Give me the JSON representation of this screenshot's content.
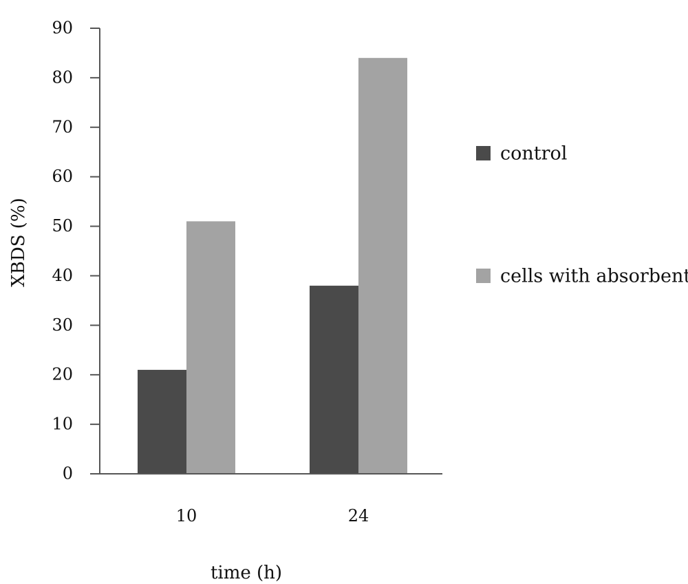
{
  "chart_data": {
    "type": "bar",
    "categories": [
      "10",
      "24"
    ],
    "series": [
      {
        "name": "control",
        "values": [
          21,
          38
        ],
        "color": "#4a4a4a"
      },
      {
        "name": "cells with absorbent",
        "values": [
          51,
          84
        ],
        "color": "#a3a3a3"
      }
    ],
    "title": "",
    "xlabel": "time (h)",
    "ylabel": "XBDS (%)",
    "ylim": [
      0,
      90
    ],
    "yticks": [
      0,
      10,
      20,
      30,
      40,
      50,
      60,
      70,
      80,
      90
    ],
    "grid": false,
    "legend_position": "right"
  }
}
